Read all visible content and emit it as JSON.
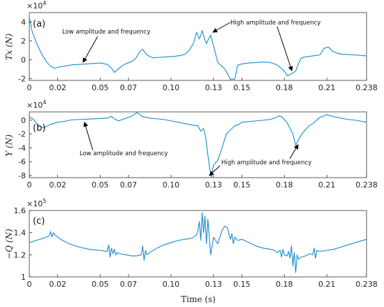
{
  "chart_data": [
    {
      "type": "line",
      "panel_label": "(a)",
      "ylabel": "Tx (N)",
      "xlabel": "",
      "exponent_base": "×10",
      "exponent_power": "4",
      "xlim": [
        0,
        0.238
      ],
      "ylim": [
        -2.2,
        5
      ],
      "xticks": [
        0,
        0.02,
        0.05,
        0.07,
        0.1,
        0.13,
        0.15,
        0.18,
        0.21,
        0.238
      ],
      "xtick_labels": [
        "0",
        "0.02",
        "0.05",
        "0.07",
        "0.10",
        "0.13",
        "0.15",
        "0.18",
        "0.21",
        "0.238"
      ],
      "yticks": [
        -2,
        0,
        2,
        4
      ],
      "ytick_labels": [
        "-2",
        "0",
        "2",
        "4"
      ],
      "series": [
        {
          "color": "#1a8ad0",
          "x": [
            0,
            0.002,
            0.005,
            0.008,
            0.012,
            0.015,
            0.018,
            0.022,
            0.03,
            0.04,
            0.05,
            0.055,
            0.058,
            0.06,
            0.063,
            0.067,
            0.072,
            0.075,
            0.078,
            0.08,
            0.083,
            0.087,
            0.092,
            0.097,
            0.102,
            0.107,
            0.11,
            0.113,
            0.116,
            0.118,
            0.12,
            0.121,
            0.122,
            0.1235,
            0.125,
            0.1265,
            0.128,
            0.13,
            0.133,
            0.136,
            0.138,
            0.141,
            0.142,
            0.145,
            0.147,
            0.15,
            0.155,
            0.16,
            0.165,
            0.17,
            0.174,
            0.177,
            0.18,
            0.182,
            0.185,
            0.188,
            0.19,
            0.192,
            0.195,
            0.2,
            0.205,
            0.208,
            0.211,
            0.214,
            0.217,
            0.22,
            0.225,
            0.23,
            0.238
          ],
          "y": [
            4.5,
            3.0,
            1.8,
            0.8,
            -0.2,
            -0.7,
            -0.9,
            -0.75,
            -0.55,
            -0.45,
            -0.35,
            -0.5,
            -0.9,
            -1.35,
            -0.95,
            -0.5,
            -0.2,
            0.1,
            0.9,
            1.1,
            0.5,
            0.2,
            0.25,
            0.3,
            0.35,
            0.45,
            0.6,
            1.0,
            1.8,
            2.9,
            2.2,
            2.6,
            3.1,
            2.3,
            1.7,
            2.2,
            2.6,
            1.5,
            -0.3,
            -0.7,
            -1.0,
            -1.8,
            -2.1,
            -2.05,
            -0.6,
            -0.45,
            -0.35,
            -0.3,
            -0.25,
            -0.3,
            -0.5,
            -0.8,
            -1.2,
            -1.7,
            -1.5,
            -1.2,
            -0.4,
            0.2,
            0.3,
            0.4,
            0.5,
            1.2,
            1.35,
            0.9,
            0.7,
            0.6,
            0.55,
            0.5,
            0.4
          ]
        }
      ],
      "annotations": [
        {
          "text": "Low amplitude and frequency"
        },
        {
          "text": "High amplitude and frequency"
        }
      ]
    },
    {
      "type": "line",
      "panel_label": "(b)",
      "ylabel": "Y (N)",
      "xlabel": "",
      "exponent_base": "×10",
      "exponent_power": "4",
      "xlim": [
        0,
        0.238
      ],
      "ylim": [
        -8.3,
        1.2
      ],
      "xticks": [
        0,
        0.02,
        0.05,
        0.07,
        0.1,
        0.13,
        0.15,
        0.18,
        0.21,
        0.238
      ],
      "xtick_labels": [
        "0",
        "0.02",
        "0.05",
        "0.07",
        "0.10",
        "0.13",
        "0.15",
        "0.18",
        "0.21",
        "0.238"
      ],
      "yticks": [
        -8,
        -6,
        -4,
        -2,
        0
      ],
      "ytick_labels": [
        "-8",
        "-6",
        "-4",
        "-2",
        "0"
      ],
      "series": [
        {
          "color": "#1a8ad0",
          "x": [
            0,
            0.003,
            0.006,
            0.01,
            0.015,
            0.02,
            0.025,
            0.03,
            0.035,
            0.04,
            0.045,
            0.05,
            0.055,
            0.058,
            0.06,
            0.063,
            0.067,
            0.07,
            0.073,
            0.076,
            0.078,
            0.08,
            0.085,
            0.09,
            0.095,
            0.1,
            0.105,
            0.11,
            0.115,
            0.119,
            0.121,
            0.123,
            0.1245,
            0.126,
            0.1275,
            0.1285,
            0.13,
            0.133,
            0.136,
            0.139,
            0.142,
            0.145,
            0.148,
            0.15,
            0.155,
            0.16,
            0.165,
            0.17,
            0.173,
            0.176,
            0.178,
            0.18,
            0.182,
            0.184,
            0.186,
            0.188,
            0.19,
            0.193,
            0.197,
            0.2,
            0.205,
            0.21,
            0.215,
            0.22,
            0.225,
            0.23,
            0.238
          ],
          "y": [
            0.5,
            0.1,
            -0.7,
            -1.1,
            -0.6,
            -0.3,
            -0.15,
            0.05,
            0.1,
            0.15,
            0.2,
            0.25,
            0.3,
            0.55,
            0.2,
            -0.1,
            0.2,
            0.4,
            0.7,
            1.1,
            0.8,
            0.5,
            0.3,
            0.2,
            0.1,
            -0.1,
            -0.3,
            -0.5,
            -0.7,
            -0.8,
            -1.6,
            -1.2,
            -2.5,
            -5.0,
            -7.2,
            -8.2,
            -6.5,
            -5.8,
            -4.0,
            -2.0,
            -1.4,
            -0.8,
            -0.6,
            -0.3,
            -0.2,
            -0.1,
            0.0,
            0.1,
            0.3,
            0.6,
            0.5,
            0.1,
            -0.4,
            -1.2,
            -2.0,
            -3.6,
            -2.8,
            -1.8,
            -0.9,
            -0.5,
            0.4,
            0.8,
            0.5,
            0.3,
            0.1,
            0.0,
            -0.3
          ]
        }
      ],
      "annotations": [
        {
          "text": "Low amplitude and frequency"
        },
        {
          "text": "High amplitude and frequency"
        }
      ]
    },
    {
      "type": "line",
      "panel_label": "(c)",
      "ylabel": "−Q (N)",
      "xlabel": "Time (s)",
      "exponent_base": "×10",
      "exponent_power": "5",
      "xlim": [
        0,
        0.238
      ],
      "ylim": [
        1.0,
        1.6
      ],
      "xticks": [
        0,
        0.02,
        0.05,
        0.07,
        0.1,
        0.13,
        0.15,
        0.18,
        0.21,
        0.238
      ],
      "xtick_labels": [
        "0",
        "0.02",
        "0.05",
        "0.07",
        "0.10",
        "0.13",
        "0.15",
        "0.18",
        "0.21",
        "0.238"
      ],
      "yticks": [
        1.0,
        1.2,
        1.4,
        1.6
      ],
      "ytick_labels": [
        "1",
        "1.2",
        "1.4",
        "1.6"
      ],
      "series": [
        {
          "color": "#1a8ad0",
          "x": [
            0,
            0.005,
            0.01,
            0.014,
            0.015,
            0.016,
            0.017,
            0.018,
            0.022,
            0.028,
            0.035,
            0.042,
            0.05,
            0.055,
            0.056,
            0.057,
            0.058,
            0.059,
            0.06,
            0.061,
            0.062,
            0.064,
            0.068,
            0.072,
            0.076,
            0.079,
            0.08,
            0.081,
            0.082,
            0.083,
            0.085,
            0.09,
            0.095,
            0.1,
            0.105,
            0.11,
            0.115,
            0.118,
            0.119,
            0.12,
            0.121,
            0.122,
            0.123,
            0.124,
            0.125,
            0.126,
            0.128,
            0.13,
            0.133,
            0.136,
            0.138,
            0.14,
            0.141,
            0.142,
            0.143,
            0.144,
            0.145,
            0.147,
            0.15,
            0.155,
            0.16,
            0.165,
            0.17,
            0.173,
            0.175,
            0.177,
            0.178,
            0.179,
            0.18,
            0.182,
            0.183,
            0.184,
            0.185,
            0.186,
            0.187,
            0.188,
            0.189,
            0.19,
            0.192,
            0.195,
            0.198,
            0.2,
            0.201,
            0.202,
            0.203,
            0.205,
            0.21,
            0.215,
            0.22,
            0.225,
            0.23,
            0.238
          ],
          "y": [
            1.31,
            1.33,
            1.35,
            1.37,
            1.41,
            1.36,
            1.4,
            1.38,
            1.34,
            1.3,
            1.27,
            1.25,
            1.24,
            1.23,
            1.29,
            1.18,
            1.26,
            1.21,
            1.25,
            1.2,
            1.22,
            1.21,
            1.2,
            1.19,
            1.19,
            1.2,
            1.28,
            1.15,
            1.24,
            1.2,
            1.22,
            1.26,
            1.29,
            1.31,
            1.33,
            1.34,
            1.35,
            1.38,
            1.42,
            1.5,
            1.33,
            1.58,
            1.4,
            1.55,
            1.3,
            1.52,
            1.2,
            1.36,
            1.3,
            1.42,
            1.46,
            1.44,
            1.38,
            1.34,
            1.39,
            1.3,
            1.36,
            1.33,
            1.34,
            1.31,
            1.28,
            1.26,
            1.25,
            1.24,
            1.22,
            1.24,
            1.18,
            1.25,
            1.2,
            1.19,
            1.23,
            1.17,
            1.28,
            1.1,
            1.22,
            1.04,
            1.2,
            1.16,
            1.18,
            1.19,
            1.21,
            1.2,
            1.26,
            1.17,
            1.24,
            1.23,
            1.24,
            1.25,
            1.27,
            1.29,
            1.31,
            1.34
          ]
        }
      ],
      "annotations": []
    }
  ]
}
